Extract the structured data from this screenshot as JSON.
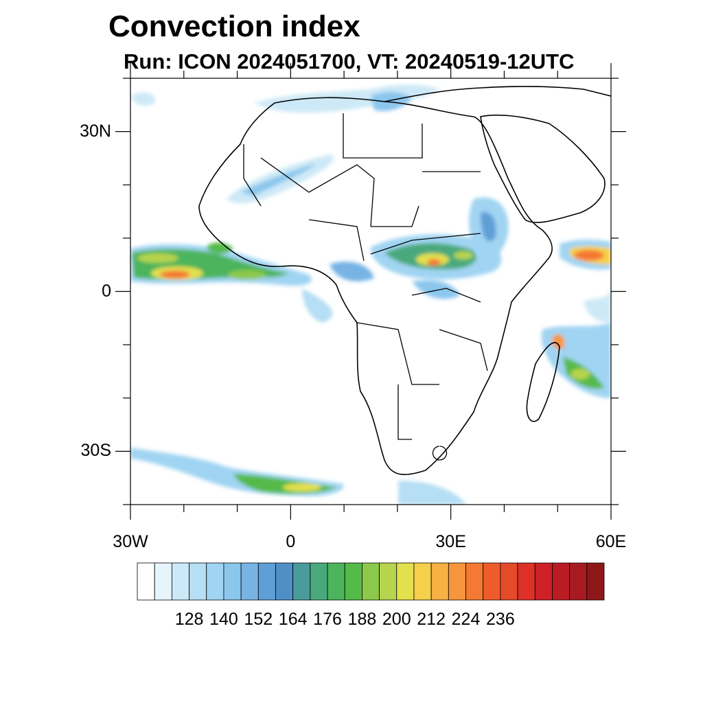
{
  "title": "Convection index",
  "subtitle": "Run: ICON 2024051700,  VT: 20240519-12UTC",
  "map": {
    "lon_range": [
      -30,
      60
    ],
    "lat_range": [
      -40,
      40
    ],
    "lat_ticks": [
      {
        "label": "30N",
        "lat": 30
      },
      {
        "label": "0",
        "lat": 0
      },
      {
        "label": "30S",
        "lat": -30
      }
    ],
    "lon_ticks": [
      {
        "label": "30W",
        "lon": -30
      },
      {
        "label": "0",
        "lon": 0
      },
      {
        "label": "30E",
        "lon": 30
      },
      {
        "label": "60E",
        "lon": 60
      }
    ]
  },
  "colorbar": {
    "colors": [
      "#ffffff",
      "#e6f4fb",
      "#cde9f7",
      "#b6def4",
      "#a0d4f2",
      "#8bc6ec",
      "#77b4e4",
      "#5e9fd6",
      "#4f8fc6",
      "#4a9b9c",
      "#49a97c",
      "#4bb45c",
      "#54ba48",
      "#8cc84a",
      "#b6d44e",
      "#e3e04e",
      "#f6d04a",
      "#f7b043",
      "#f6953d",
      "#f47a33",
      "#ee5c2c",
      "#e54a2a",
      "#dd3128",
      "#cd2027",
      "#bb1c24",
      "#a81a22",
      "#8e1818"
    ],
    "labels": [
      "128",
      "140",
      "152",
      "164",
      "176",
      "188",
      "200",
      "212",
      "224",
      "236"
    ]
  }
}
